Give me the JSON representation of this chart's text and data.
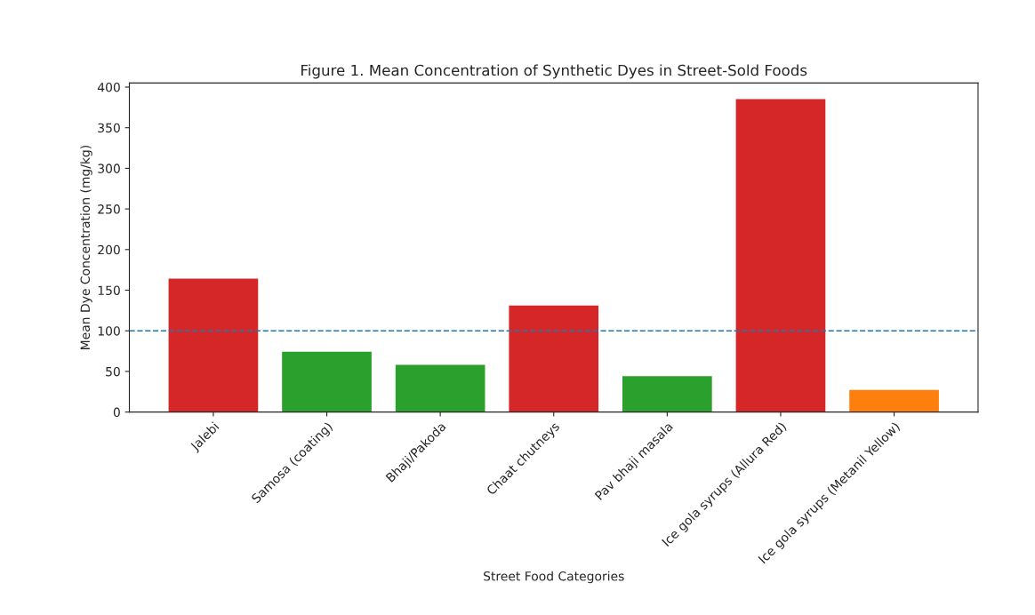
{
  "chart_data": {
    "type": "bar",
    "title": "Figure 1. Mean Concentration of Synthetic Dyes in Street-Sold Foods",
    "xlabel": "Street Food Categories",
    "ylabel": "Mean Dye Concentration (mg/kg)",
    "categories": [
      "Jalebi",
      "Samosa (coating)",
      "Bhaji/Pakoda",
      "Chaat chutneys",
      "Pav bhaji masala",
      "Ice gola syrups (Allura Red)",
      "Ice gola syrups (Metanil Yellow)"
    ],
    "values": [
      165,
      75,
      59,
      132,
      45,
      386,
      28
    ],
    "colors": [
      "#d62728",
      "#2ca02c",
      "#2ca02c",
      "#d62728",
      "#2ca02c",
      "#d62728",
      "#ff7f0e"
    ],
    "ylim": [
      0,
      405
    ],
    "yticks": [
      0,
      50,
      100,
      150,
      200,
      250,
      300,
      350,
      400
    ],
    "grid": false,
    "ref_lines": [
      {
        "axis": "y",
        "value": 100,
        "color": "#1f77b4",
        "line_style": "dashed"
      }
    ]
  }
}
